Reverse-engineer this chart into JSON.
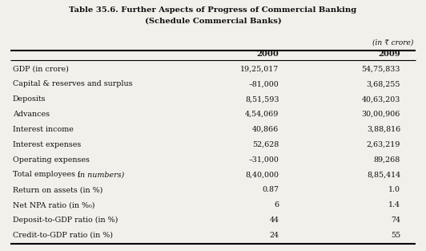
{
  "title_line1": "Table 35.6. Further Aspects of Progress of Commercial Banking",
  "title_line2": "(Schedule Commercial Banks)",
  "subtitle_note": "(in ₹ crore)",
  "col_headers": [
    "2000",
    "2009"
  ],
  "rows": [
    [
      "GDP (in crore)",
      "19,25,017",
      "54,75,833"
    ],
    [
      "Capital & reserves and surplus",
      "–81,000",
      "3,68,255"
    ],
    [
      "Deposits",
      "8,51,593",
      "40,63,203"
    ],
    [
      "Advances",
      "4,54,069",
      "30,00,906"
    ],
    [
      "Interest income",
      "40,866",
      "3,88,816"
    ],
    [
      "Interest expenses",
      "52,628",
      "2,63,219"
    ],
    [
      "Operating expenses",
      "–31,000",
      "89,268"
    ],
    [
      "Total employees",
      "in numbers",
      "8,40,000",
      "8,85,414"
    ],
    [
      "Return on assets (in %)",
      "0.87",
      "1.0"
    ],
    [
      "Net NPA ratio (in %₀)",
      "6",
      "1.4"
    ],
    [
      "Deposit-to-GDP ratio (in %)",
      "44",
      "74"
    ],
    [
      "Credit-to-GDP ratio (in %)",
      "24",
      "55"
    ]
  ],
  "italic_row_idx": 7,
  "bg_color": "#f2f0eb",
  "text_color": "#111111",
  "title_fontsize": 7.2,
  "header_fontsize": 7.2,
  "cell_fontsize": 6.8,
  "note_fontsize": 6.5
}
